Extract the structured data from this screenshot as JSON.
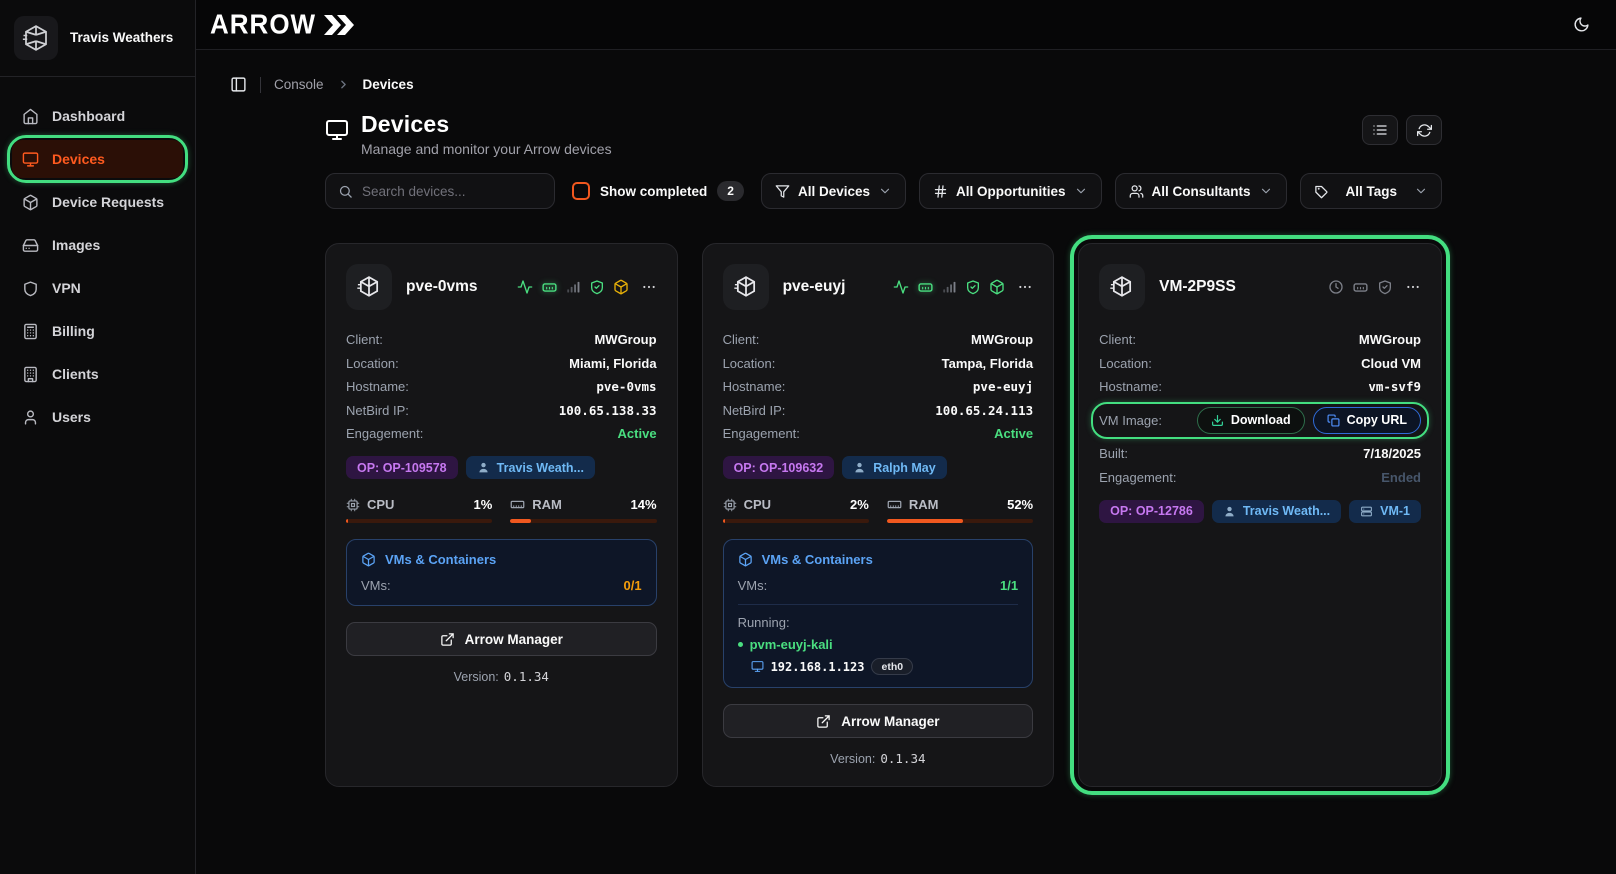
{
  "theme": {
    "accent_orange": "#f0581f",
    "highlight_green": "#43de80",
    "status_green": "#4ade80",
    "status_yellow": "#e7b008",
    "panel_blue": "#5ba3f5"
  },
  "sidebar": {
    "user_name": "Travis Weathers",
    "items": [
      {
        "label": "Dashboard",
        "icon": "home-icon",
        "active": false
      },
      {
        "label": "Devices",
        "icon": "monitor-icon",
        "active": true
      },
      {
        "label": "Device Requests",
        "icon": "package-icon",
        "active": false
      },
      {
        "label": "Images",
        "icon": "hard-drive-icon",
        "active": false
      },
      {
        "label": "VPN",
        "icon": "shield-icon",
        "active": false
      },
      {
        "label": "Billing",
        "icon": "calculator-icon",
        "active": false
      },
      {
        "label": "Clients",
        "icon": "building-icon",
        "active": false
      },
      {
        "label": "Users",
        "icon": "user-icon",
        "active": false
      }
    ]
  },
  "topbar": {
    "logo_text": "ARROW"
  },
  "breadcrumb": {
    "root": "Console",
    "current": "Devices"
  },
  "page": {
    "title": "Devices",
    "subtitle": "Manage and monitor your Arrow devices"
  },
  "filters": {
    "search_placeholder": "Search devices...",
    "show_completed_label": "Show completed",
    "show_completed_count": "2",
    "dropdowns": [
      {
        "label": "All Devices",
        "icon": "funnel-icon"
      },
      {
        "label": "All Opportunities",
        "icon": "hash-icon"
      },
      {
        "label": "All Consultants",
        "icon": "users-icon"
      },
      {
        "label": "All Tags",
        "icon": "tag-icon"
      }
    ]
  },
  "labels": {
    "client": "Client:",
    "location": "Location:",
    "hostname": "Hostname:",
    "netbird_ip": "NetBird IP:",
    "engagement": "Engagement:",
    "vm_image": "VM Image:",
    "built": "Built:",
    "cpu": "CPU",
    "ram": "RAM",
    "vms_containers": "VMs & Containers",
    "vms": "VMs:",
    "running": "Running:",
    "arrow_manager": "Arrow Manager",
    "version": "Version:",
    "download": "Download",
    "copy_url": "Copy URL"
  },
  "cards": [
    {
      "name": "pve-0vms",
      "client": "MWGroup",
      "location": "Miami, Florida",
      "hostname": "pve-0vms",
      "netbird_ip": "100.65.138.33",
      "engagement": "Active",
      "op_badge": "OP: OP-109578",
      "consultant_badge": "Travis Weath...",
      "cpu_pct": "1%",
      "cpu_value": 1,
      "ram_pct": "14%",
      "ram_value": 14,
      "vms_count": "0/1",
      "version": "0.1.34"
    },
    {
      "name": "pve-euyj",
      "client": "MWGroup",
      "location": "Tampa, Florida",
      "hostname": "pve-euyj",
      "netbird_ip": "100.65.24.113",
      "engagement": "Active",
      "op_badge": "OP: OP-109632",
      "consultant_badge": "Ralph May",
      "cpu_pct": "2%",
      "cpu_value": 2,
      "ram_pct": "52%",
      "ram_value": 52,
      "vms_count": "1/1",
      "running_vm": "pvm-euyj-kali",
      "vm_ip": "192.168.1.123",
      "vm_iface": "eth0",
      "version": "0.1.34"
    },
    {
      "name": "VM-2P9SS",
      "client": "MWGroup",
      "location": "Cloud VM",
      "hostname": "vm-svf9",
      "built": "7/18/2025",
      "engagement": "Ended",
      "op_badge": "OP: OP-12786",
      "consultant_badge": "Travis Weath...",
      "vm_badge": "VM-1"
    }
  ]
}
